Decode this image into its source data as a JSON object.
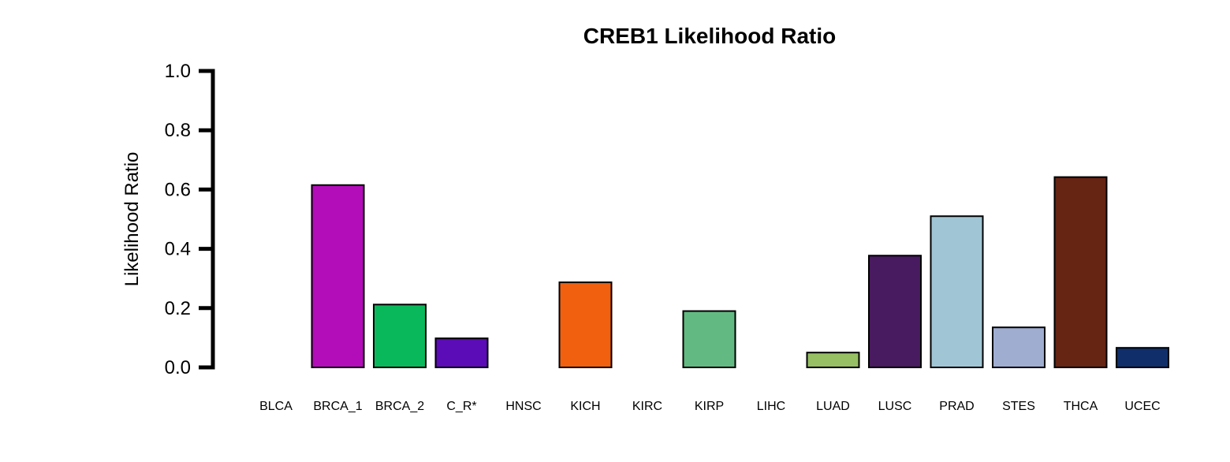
{
  "chart_data": {
    "type": "bar",
    "title": "CREB1 Likelihood Ratio",
    "ylabel": "Likelihood Ratio",
    "xlabel": "",
    "ylim": [
      0,
      1
    ],
    "yticks": [
      "0.0",
      "0.2",
      "0.4",
      "0.6",
      "0.8",
      "1.0"
    ],
    "categories": [
      "BLCA",
      "BRCA_1",
      "BRCA_2",
      "C_R*",
      "HNSC",
      "KICH",
      "KIRC",
      "KIRP",
      "LIHC",
      "LUAD",
      "LUSC",
      "PRAD",
      "STES",
      "THCA",
      "UCEC"
    ],
    "values": [
      0.0,
      0.615,
      0.212,
      0.098,
      0.0,
      0.287,
      0.0,
      0.19,
      0.0,
      0.05,
      0.377,
      0.51,
      0.135,
      0.642,
      0.066
    ],
    "colors": [
      "#000000",
      "#B30DB9",
      "#09B85A",
      "#5B0CB6",
      "#000000",
      "#F0600F",
      "#000000",
      "#62BA82",
      "#000000",
      "#97BF63",
      "#481A5F",
      "#A0C6D5",
      "#9FADD1",
      "#662413",
      "#0F2E6A"
    ],
    "grid": false,
    "legend": "none"
  }
}
